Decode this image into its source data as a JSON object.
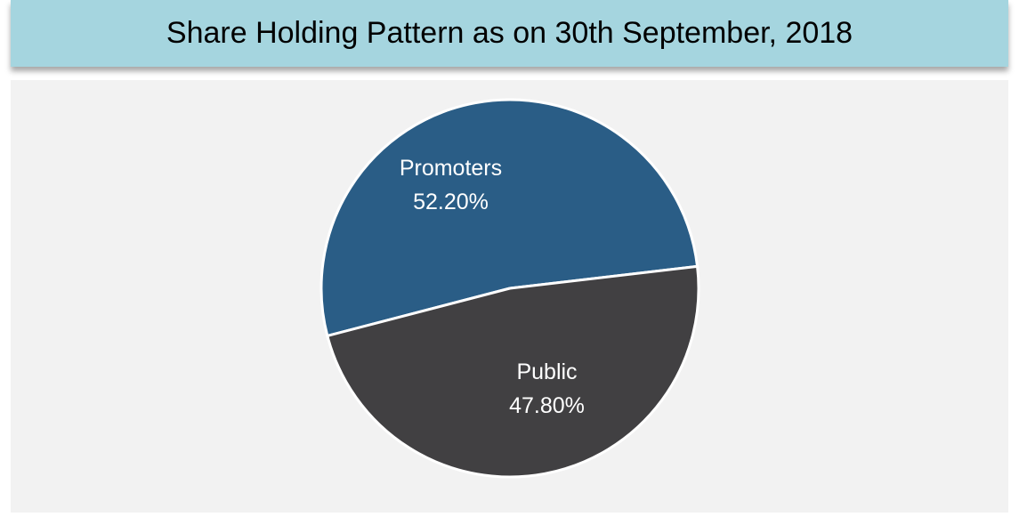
{
  "chart_data": {
    "type": "pie",
    "title": "Share Holding Pattern as on 30th September, 2018",
    "categories": [
      "Promoters",
      "Public"
    ],
    "values": [
      52.2,
      47.8
    ],
    "value_labels": [
      "52.20%",
      "47.80%"
    ],
    "colors": [
      "#2a5d86",
      "#414042"
    ]
  }
}
